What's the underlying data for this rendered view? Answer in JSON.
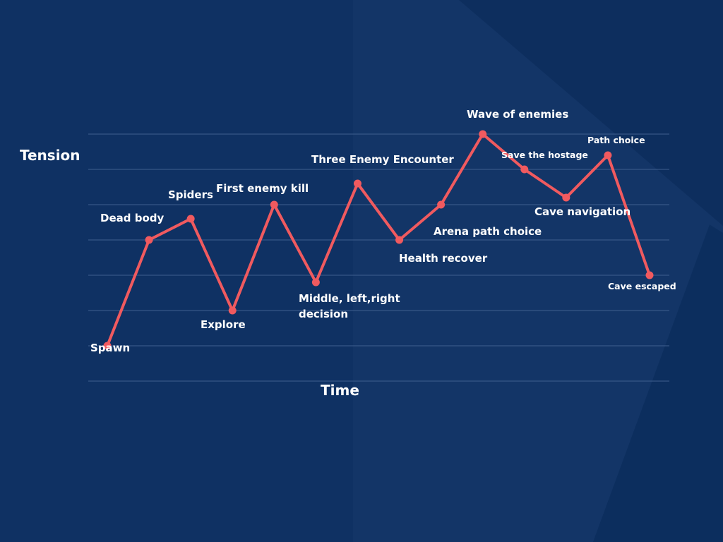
{
  "colors": {
    "background": "#0f3163",
    "background_shade_light": "#17386b",
    "background_shade_dark": "#0a2a58",
    "line": "#f05a5f",
    "grid": "#3f5f8f",
    "text": "#ffffff"
  },
  "chart_data": {
    "type": "line",
    "title": "",
    "xlabel": "Time",
    "ylabel": "Tension",
    "grid": true,
    "legend": "none",
    "gridline_count": 8,
    "ylim": [
      0,
      7
    ],
    "categories": [
      "Spawn",
      "Dead body",
      "Spiders",
      "Explore",
      "First enemy kill",
      "Middle, left,right decision",
      "Three Enemy Encounter",
      "Health recover",
      "Arena path choice",
      "Wave of enemies",
      "Save the hostage",
      "Cave navigation",
      "Path choice",
      "Cave escaped"
    ],
    "series": [
      {
        "values": [
          1.0,
          4.0,
          4.6,
          2.0,
          5.0,
          2.8,
          5.6,
          4.0,
          5.0,
          7.0,
          6.0,
          5.2,
          6.4,
          3.0
        ]
      }
    ]
  }
}
